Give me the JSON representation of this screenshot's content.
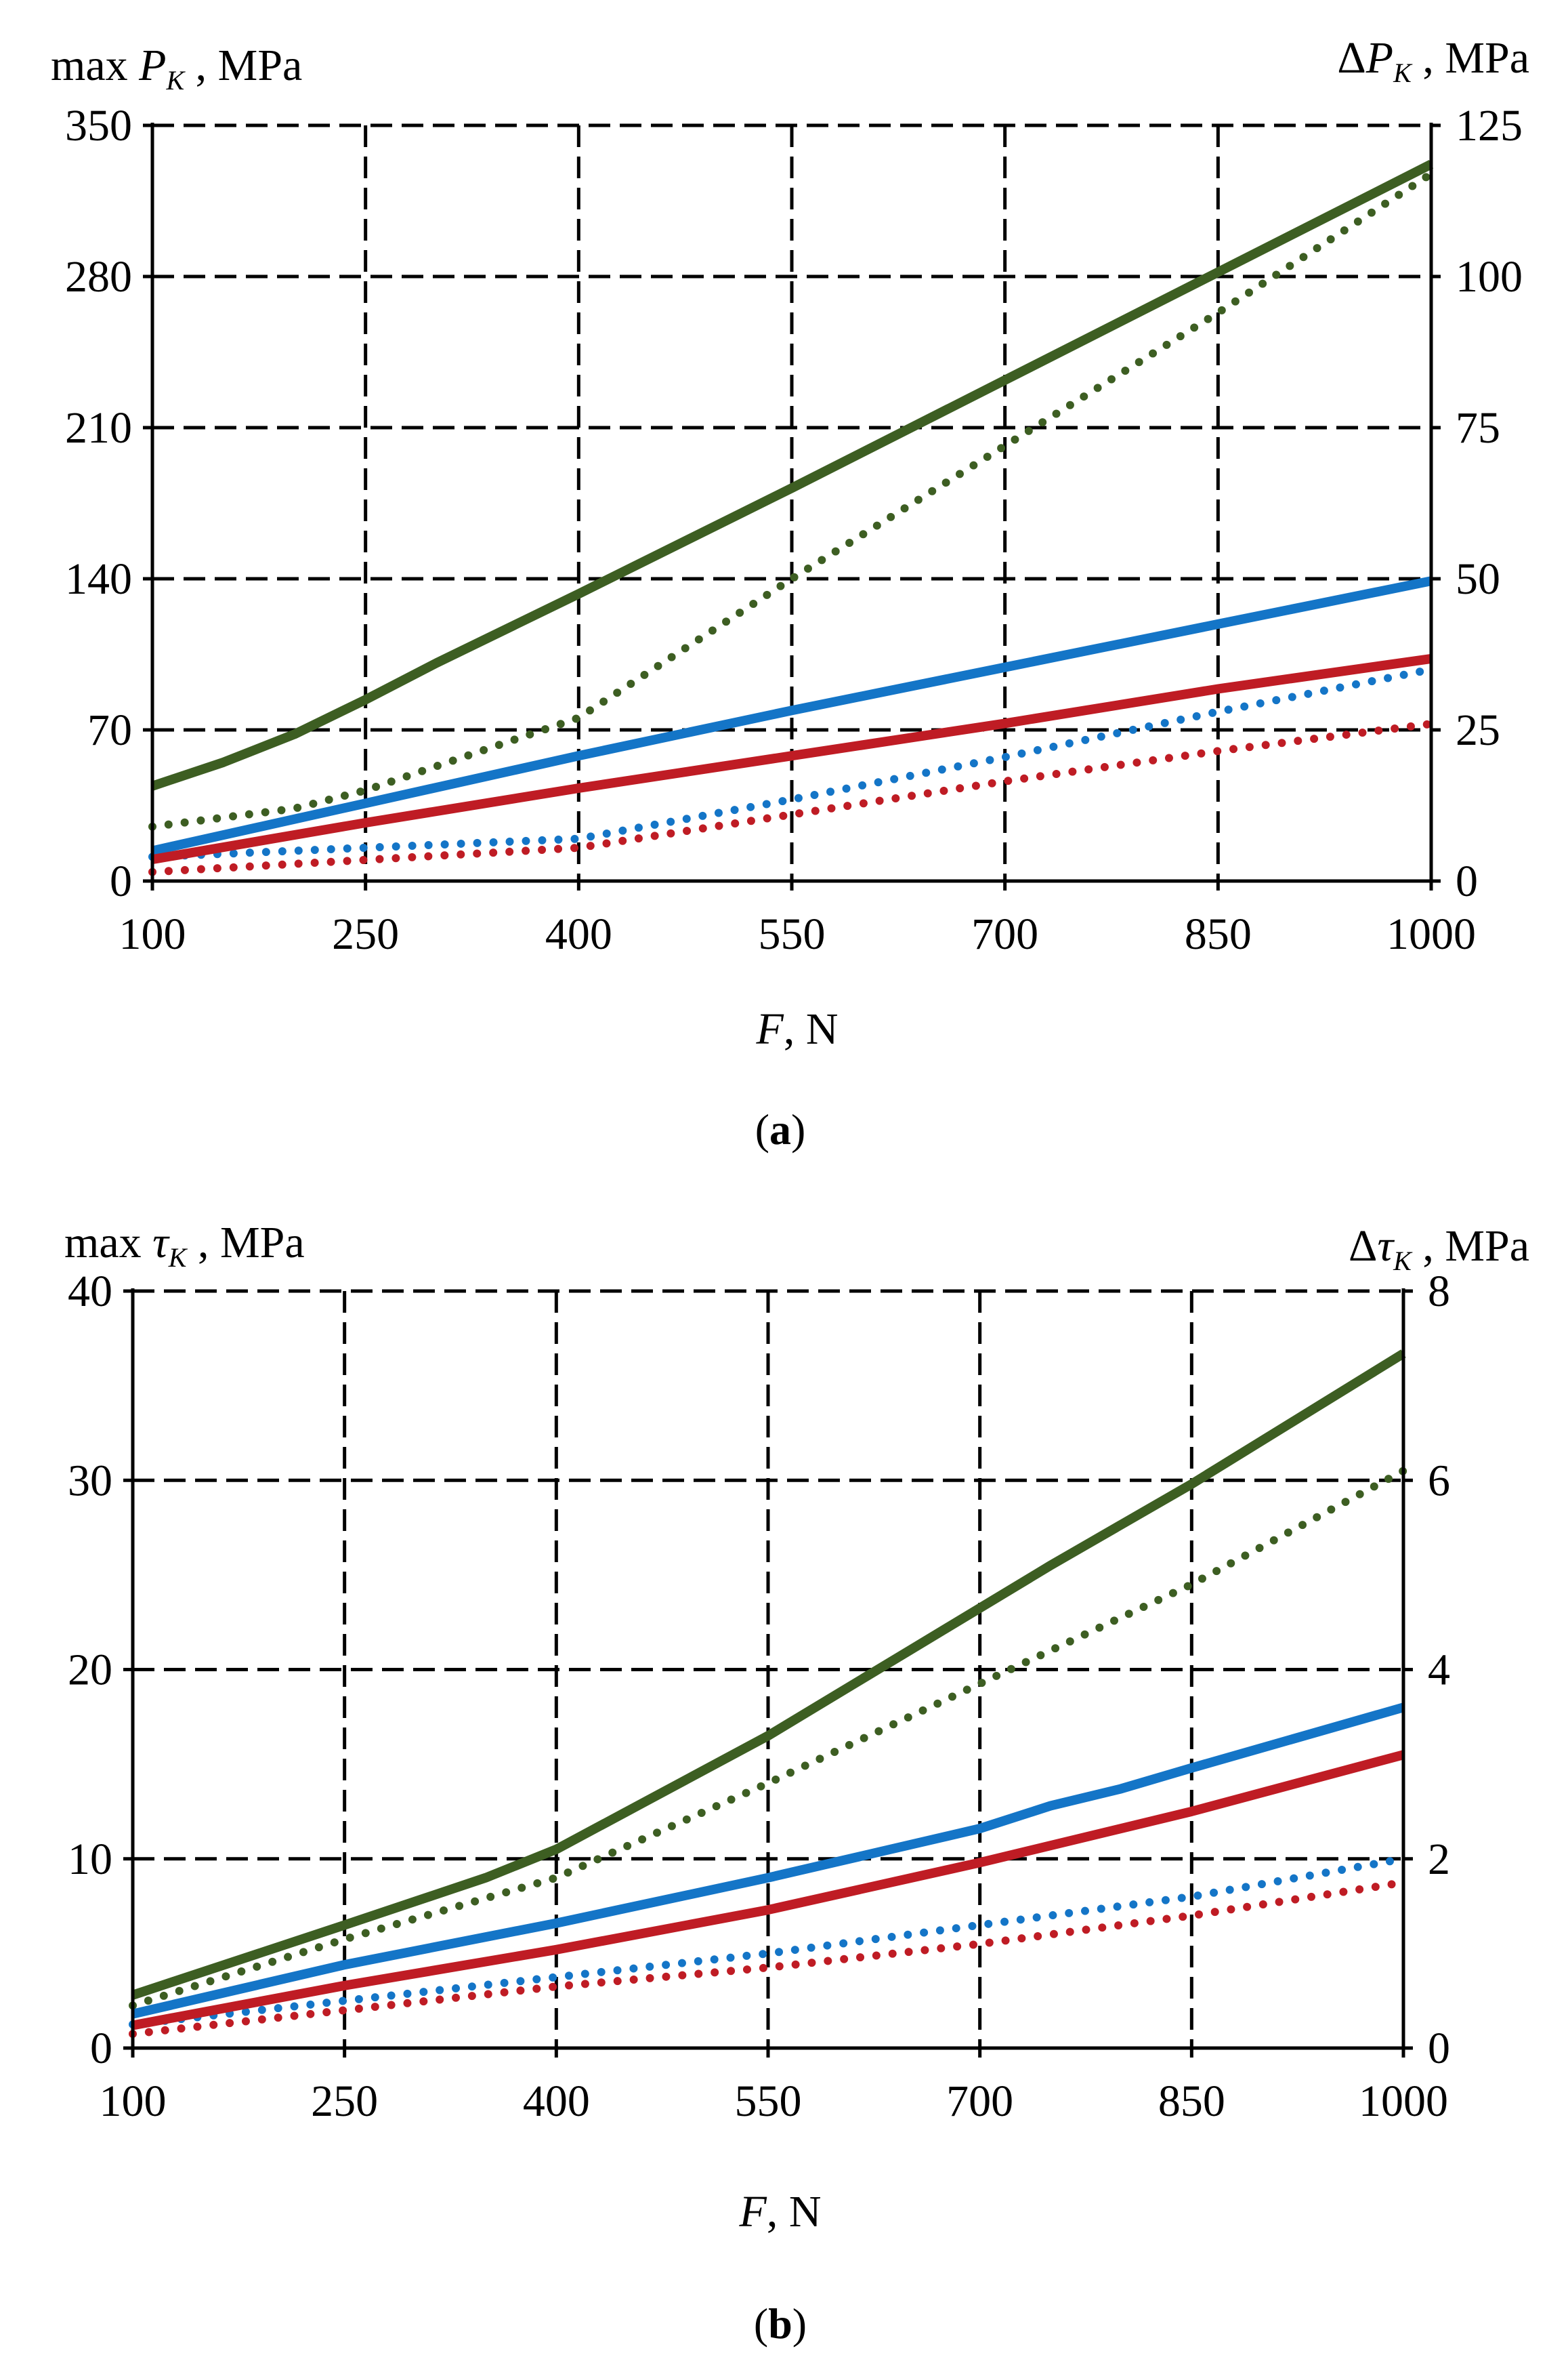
{
  "colors": {
    "green": "#3d5e22",
    "blue": "#1475c7",
    "red": "#bf1c24"
  },
  "chart_data": [
    {
      "type": "line",
      "caption": "a",
      "xlabel": {
        "var": "F",
        "unit": ", N"
      },
      "ylabel_left": {
        "prefix": "max ",
        "var": "P",
        "sub": "K",
        "unit": " , MPa"
      },
      "ylabel_right": {
        "prefix": "Δ",
        "var": "P",
        "sub": "K",
        "unit": " , MPa"
      },
      "x_ticks": [
        100,
        250,
        400,
        550,
        700,
        850,
        1000
      ],
      "xlim": [
        100,
        1000
      ],
      "ylim_left": [
        0,
        350
      ],
      "y_ticks_left": [
        0,
        70,
        140,
        210,
        280,
        350
      ],
      "ylim_right": [
        0,
        125
      ],
      "y_ticks_right": [
        0,
        25,
        50,
        75,
        100,
        125
      ],
      "series": [
        {
          "name": "green solid",
          "axis": "left",
          "style": "solid",
          "color": "green",
          "x": [
            100,
            150,
            200,
            250,
            300,
            400,
            550,
            700,
            850,
            1000
          ],
          "y": [
            44,
            55,
            68,
            84,
            101,
            133,
            182,
            232,
            282,
            332
          ]
        },
        {
          "name": "blue solid",
          "axis": "left",
          "style": "solid",
          "color": "blue",
          "x": [
            100,
            250,
            400,
            550,
            700,
            850,
            1000
          ],
          "y": [
            14,
            36,
            58,
            79,
            99,
            119,
            139
          ]
        },
        {
          "name": "red solid",
          "axis": "left",
          "style": "solid",
          "color": "red",
          "x": [
            100,
            250,
            400,
            550,
            700,
            850,
            1000
          ],
          "y": [
            10,
            27,
            43,
            58,
            73,
            89,
            103
          ]
        },
        {
          "name": "green dotted",
          "axis": "right",
          "style": "dotted",
          "color": "green",
          "x": [
            100,
            200,
            250,
            400,
            550,
            700,
            850,
            1000
          ],
          "y": [
            9,
            12,
            15,
            27,
            50,
            72,
            94,
            117
          ]
        },
        {
          "name": "blue dotted",
          "axis": "right",
          "style": "dotted",
          "color": "blue",
          "x": [
            100,
            250,
            400,
            550,
            700,
            850,
            1000
          ],
          "y": [
            4,
            5.5,
            7,
            13.5,
            20.5,
            28,
            35
          ]
        },
        {
          "name": "red dotted",
          "axis": "right",
          "style": "dotted",
          "color": "red",
          "x": [
            100,
            250,
            400,
            550,
            700,
            850,
            1000
          ],
          "y": [
            1.5,
            3.5,
            5.5,
            11,
            16.5,
            21.5,
            26
          ]
        }
      ]
    },
    {
      "type": "line",
      "caption": "b",
      "xlabel": {
        "var": "F",
        "unit": ", N"
      },
      "ylabel_left": {
        "prefix": "max ",
        "var": "τ",
        "sub": "K",
        "unit": " , MPa"
      },
      "ylabel_right": {
        "prefix": "Δ",
        "var": "τ",
        "sub": "K",
        "unit": " , MPa"
      },
      "x_ticks": [
        100,
        250,
        400,
        550,
        700,
        850,
        1000
      ],
      "xlim": [
        100,
        1000
      ],
      "ylim_left": [
        0,
        40
      ],
      "y_ticks_left": [
        0,
        10,
        20,
        30,
        40
      ],
      "ylim_right": [
        0,
        8
      ],
      "y_ticks_right": [
        0,
        2,
        4,
        6,
        8
      ],
      "series": [
        {
          "name": "green solid",
          "axis": "left",
          "style": "solid",
          "color": "green",
          "x": [
            100,
            250,
            350,
            400,
            450,
            550,
            650,
            750,
            850,
            1000
          ],
          "y": [
            2.8,
            6.5,
            9,
            10.5,
            12.5,
            16.5,
            21,
            25.5,
            29.8,
            36.7
          ]
        },
        {
          "name": "blue solid",
          "axis": "left",
          "style": "solid",
          "color": "blue",
          "x": [
            100,
            250,
            400,
            550,
            700,
            750,
            800,
            850,
            1000
          ],
          "y": [
            1.8,
            4.4,
            6.6,
            9,
            11.6,
            12.8,
            13.7,
            14.8,
            18
          ]
        },
        {
          "name": "red solid",
          "axis": "left",
          "style": "solid",
          "color": "red",
          "x": [
            100,
            250,
            400,
            550,
            700,
            850,
            1000
          ],
          "y": [
            1.2,
            3.3,
            5.2,
            7.3,
            9.8,
            12.5,
            15.5
          ]
        },
        {
          "name": "green dotted",
          "axis": "right",
          "style": "dotted",
          "color": "green",
          "x": [
            100,
            250,
            400,
            550,
            700,
            850,
            1000
          ],
          "y": [
            0.45,
            1.15,
            1.8,
            2.8,
            3.85,
            4.9,
            6.1
          ]
        },
        {
          "name": "blue dotted",
          "axis": "right",
          "style": "dotted",
          "color": "blue",
          "x": [
            100,
            250,
            400,
            550,
            700,
            850,
            1000
          ],
          "y": [
            0.25,
            0.5,
            0.75,
            1.0,
            1.3,
            1.6,
            2.0
          ]
        },
        {
          "name": "red dotted",
          "axis": "right",
          "style": "dotted",
          "color": "red",
          "x": [
            100,
            250,
            400,
            550,
            700,
            850,
            1000
          ],
          "y": [
            0.15,
            0.4,
            0.65,
            0.85,
            1.1,
            1.4,
            1.75
          ]
        }
      ]
    }
  ]
}
